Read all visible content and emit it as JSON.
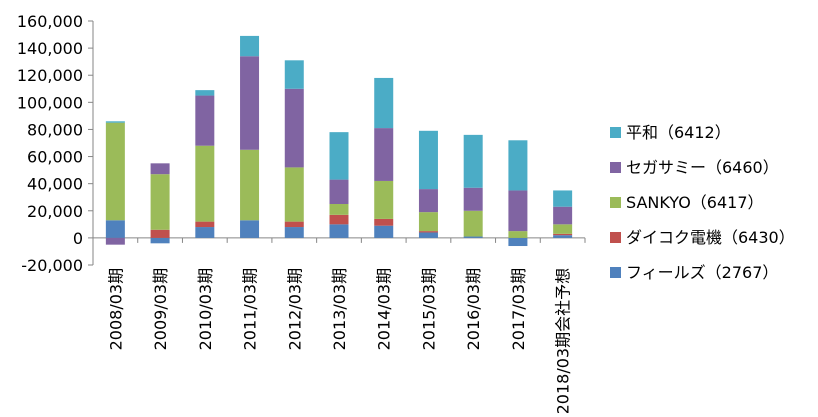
{
  "chart_data": {
    "type": "bar",
    "stacked": true,
    "categories": [
      "2008/03期",
      "2009/03期",
      "2010/03期",
      "2011/03期",
      "2012/03期",
      "2013/03期",
      "2014/03期",
      "2015/03期",
      "2016/03期",
      "2017/03期",
      "2018/03期会社予想"
    ],
    "ylim": [
      -20000,
      160000
    ],
    "yticks": [
      -20000,
      0,
      20000,
      40000,
      60000,
      80000,
      100000,
      120000,
      140000,
      160000
    ],
    "ytick_labels": [
      "-20,000",
      "0",
      "20,000",
      "40,000",
      "60,000",
      "80,000",
      "100,000",
      "120,000",
      "140,000",
      "160,000"
    ],
    "grid": false,
    "legend_position": "right",
    "series": [
      {
        "name": "フィールズ（2767）",
        "color": "#4f81bd",
        "values": [
          13000,
          -4000,
          8000,
          13000,
          8000,
          10000,
          9000,
          4000,
          1000,
          -6000,
          2000
        ]
      },
      {
        "name": "ダイコク電機（6430）",
        "color": "#c0504d",
        "values": [
          0,
          6000,
          4000,
          0,
          4000,
          7000,
          5000,
          1000,
          0,
          0,
          1000
        ]
      },
      {
        "name": "SANKYO（6417）",
        "color": "#9bbb59",
        "values": [
          72000,
          41000,
          56000,
          52000,
          40000,
          8000,
          28000,
          14000,
          19000,
          5000,
          7000
        ]
      },
      {
        "name": "セガサミー（6460）",
        "color": "#8064a2",
        "values": [
          -5000,
          8000,
          37000,
          69000,
          58000,
          18000,
          39000,
          17000,
          17000,
          30000,
          13000
        ]
      },
      {
        "name": "平和（6412）",
        "color": "#4bacc6",
        "values": [
          1000,
          0,
          4000,
          15000,
          21000,
          35000,
          37000,
          43000,
          39000,
          37000,
          12000
        ]
      }
    ],
    "legend_order": [
      4,
      3,
      2,
      1,
      0
    ]
  }
}
